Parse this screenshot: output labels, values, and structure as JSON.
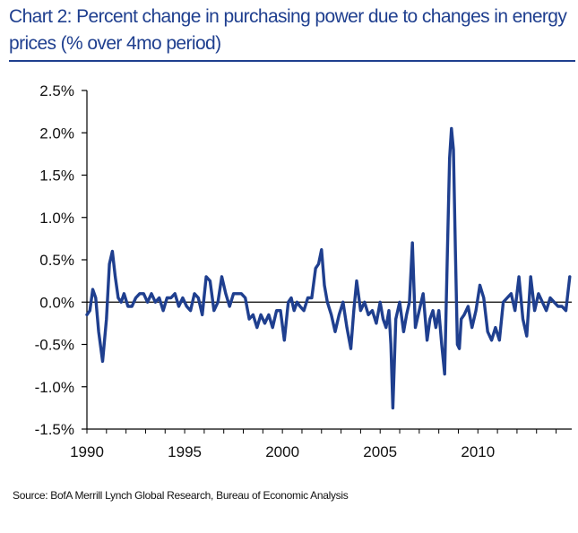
{
  "title": "Chart 2: Percent change in purchasing power due to changes in energy prices (% over 4mo period)",
  "source": "Source: BofA Merrill Lynch Global Research, Bureau of Economic Analysis",
  "colors": {
    "series": "#1f3f8f",
    "title": "#1f3f8f",
    "axis": "#000000"
  },
  "chart_data": {
    "type": "line",
    "title": "Chart 2: Percent change in purchasing power due to changes in energy prices (% over 4mo period)",
    "xlabel": "",
    "ylabel": "",
    "xlim": [
      1990,
      2014.8
    ],
    "ylim": [
      -1.5,
      2.5
    ],
    "y_ticks": [
      2.5,
      2.0,
      1.5,
      1.0,
      0.5,
      0.0,
      -0.5,
      -1.0,
      -1.5
    ],
    "y_tick_labels": [
      "2.5%",
      "2.0%",
      "1.5%",
      "1.0%",
      "0.5%",
      "0.0%",
      "-0.5%",
      "-1.0%",
      "-1.5%"
    ],
    "x_ticks": [
      1990,
      1995,
      2000,
      2005,
      2010
    ],
    "x_tick_labels": [
      "1990",
      "1995",
      "2000",
      "2005",
      "2010"
    ],
    "grid": false,
    "legend": "none",
    "series": [
      {
        "x": [
          1990.0,
          1990.15,
          1990.3,
          1990.45,
          1990.6,
          1990.8,
          1991.0,
          1991.15,
          1991.3,
          1991.45,
          1991.6,
          1991.75,
          1991.9,
          1992.1,
          1992.3,
          1992.5,
          1992.7,
          1992.9,
          1993.1,
          1993.3,
          1993.5,
          1993.7,
          1993.9,
          1994.1,
          1994.3,
          1994.5,
          1994.7,
          1994.9,
          1995.1,
          1995.3,
          1995.5,
          1995.7,
          1995.9,
          1996.1,
          1996.3,
          1996.5,
          1996.7,
          1996.9,
          1997.1,
          1997.3,
          1997.5,
          1997.7,
          1997.9,
          1998.1,
          1998.3,
          1998.5,
          1998.7,
          1998.9,
          1999.1,
          1999.3,
          1999.5,
          1999.7,
          1999.9,
          2000.1,
          2000.3,
          2000.45,
          2000.6,
          2000.75,
          2000.9,
          2001.1,
          2001.3,
          2001.5,
          2001.7,
          2001.85,
          2002.0,
          2002.15,
          2002.3,
          2002.5,
          2002.7,
          2002.9,
          2003.1,
          2003.3,
          2003.5,
          2003.65,
          2003.8,
          2004.0,
          2004.2,
          2004.4,
          2004.6,
          2004.8,
          2005.0,
          2005.15,
          2005.3,
          2005.45,
          2005.55,
          2005.65,
          2005.8,
          2006.0,
          2006.2,
          2006.35,
          2006.5,
          2006.65,
          2006.8,
          2007.0,
          2007.2,
          2007.4,
          2007.55,
          2007.7,
          2007.85,
          2008.0,
          2008.15,
          2008.3,
          2008.45,
          2008.55,
          2008.65,
          2008.75,
          2008.85,
          2008.95,
          2009.05,
          2009.15,
          2009.3,
          2009.5,
          2009.7,
          2009.9,
          2010.1,
          2010.3,
          2010.5,
          2010.7,
          2010.9,
          2011.1,
          2011.3,
          2011.5,
          2011.7,
          2011.9,
          2012.1,
          2012.3,
          2012.5,
          2012.7,
          2012.9,
          2013.1,
          2013.3,
          2013.5,
          2013.7,
          2013.9,
          2014.1,
          2014.3,
          2014.5,
          2014.7
        ],
        "y": [
          -0.15,
          -0.1,
          0.15,
          0.05,
          -0.35,
          -0.7,
          -0.2,
          0.45,
          0.6,
          0.3,
          0.05,
          0.0,
          0.1,
          -0.05,
          -0.05,
          0.05,
          0.1,
          0.1,
          0.0,
          0.1,
          0.0,
          0.05,
          -0.1,
          0.05,
          0.05,
          0.1,
          -0.05,
          0.05,
          -0.05,
          -0.1,
          0.1,
          0.05,
          -0.15,
          0.3,
          0.25,
          -0.1,
          0.0,
          0.3,
          0.1,
          -0.05,
          0.1,
          0.1,
          0.1,
          0.05,
          -0.2,
          -0.15,
          -0.3,
          -0.15,
          -0.25,
          -0.15,
          -0.3,
          -0.1,
          -0.1,
          -0.45,
          0.0,
          0.05,
          -0.1,
          0.0,
          -0.05,
          -0.1,
          0.05,
          0.05,
          0.4,
          0.45,
          0.62,
          0.2,
          0.0,
          -0.15,
          -0.35,
          -0.15,
          0.0,
          -0.3,
          -0.55,
          -0.1,
          0.25,
          -0.1,
          0.0,
          -0.15,
          -0.1,
          -0.25,
          0.0,
          -0.2,
          -0.3,
          -0.1,
          -0.5,
          -1.25,
          -0.2,
          0.0,
          -0.35,
          -0.15,
          0.0,
          0.7,
          -0.3,
          -0.1,
          0.1,
          -0.45,
          -0.2,
          -0.1,
          -0.3,
          -0.1,
          -0.5,
          -0.85,
          0.7,
          1.7,
          2.05,
          1.8,
          0.6,
          -0.5,
          -0.55,
          -0.2,
          -0.15,
          -0.05,
          -0.3,
          -0.1,
          0.2,
          0.05,
          -0.35,
          -0.45,
          -0.3,
          -0.45,
          0.0,
          0.05,
          0.1,
          -0.1,
          0.3,
          -0.2,
          -0.4,
          0.3,
          -0.1,
          0.1,
          0.0,
          -0.1,
          0.05,
          0.0,
          -0.05,
          -0.05,
          -0.1,
          0.3
        ]
      }
    ]
  }
}
